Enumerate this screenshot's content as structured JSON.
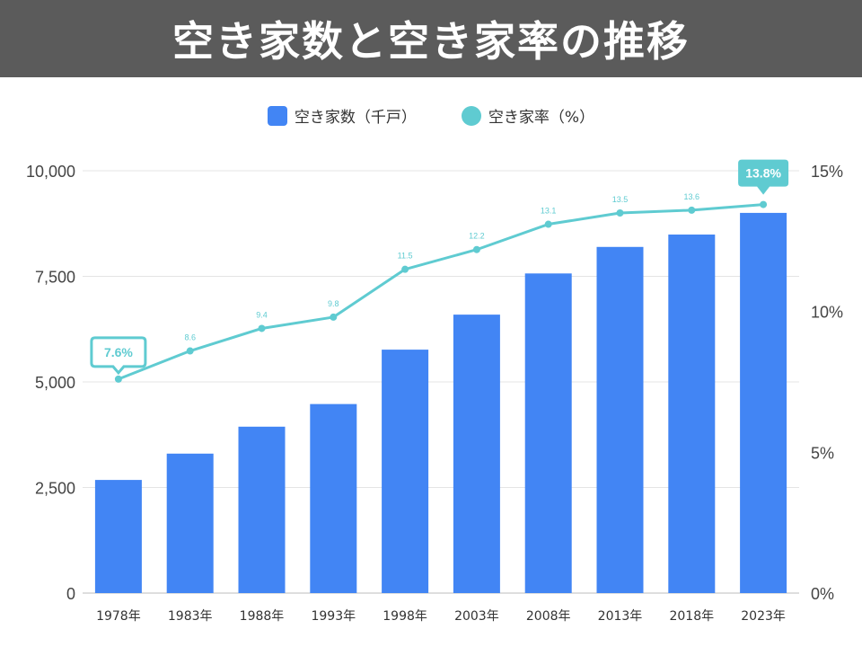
{
  "header": {
    "title": "空き家数と空き家率の推移"
  },
  "legend": {
    "bar_label": "空き家数（千戸）",
    "line_label": "空き家率（%）"
  },
  "colors": {
    "bar": "#4285f4",
    "line": "#5fcbd1",
    "header": "#5b5b5b"
  },
  "chart_data": {
    "type": "bar",
    "categories": [
      "1978年",
      "1983年",
      "1988年",
      "1993年",
      "1998年",
      "2003年",
      "2008年",
      "2013年",
      "2018年",
      "2023年"
    ],
    "series": [
      {
        "name": "空き家数（千戸）",
        "type": "bar",
        "axis": "left",
        "values": [
          2679,
          3302,
          3940,
          4476,
          5764,
          6593,
          7568,
          8196,
          8489,
          9002
        ]
      },
      {
        "name": "空き家率（%）",
        "type": "line",
        "axis": "right",
        "values": [
          7.6,
          8.6,
          9.4,
          9.8,
          11.5,
          12.2,
          13.1,
          13.5,
          13.6,
          13.8
        ]
      }
    ],
    "point_labels": [
      "7.6%",
      "8.6",
      "9.4",
      "9.8",
      "11.5",
      "12.2",
      "13.1",
      "13.5",
      "13.6",
      "13.8%"
    ],
    "callouts": [
      0,
      9
    ],
    "y_left": {
      "min": 0,
      "max": 10000,
      "ticks": [
        0,
        2500,
        5000,
        7500,
        10000
      ],
      "tick_labels": [
        "0",
        "2,500",
        "5,000",
        "7,500",
        "10,000"
      ]
    },
    "y_right": {
      "min": 0,
      "max": 15,
      "ticks": [
        0,
        5,
        10,
        15
      ],
      "tick_labels": [
        "0%",
        "5%",
        "10%",
        "15%"
      ]
    },
    "grid": true,
    "legend_position": "top-center"
  }
}
